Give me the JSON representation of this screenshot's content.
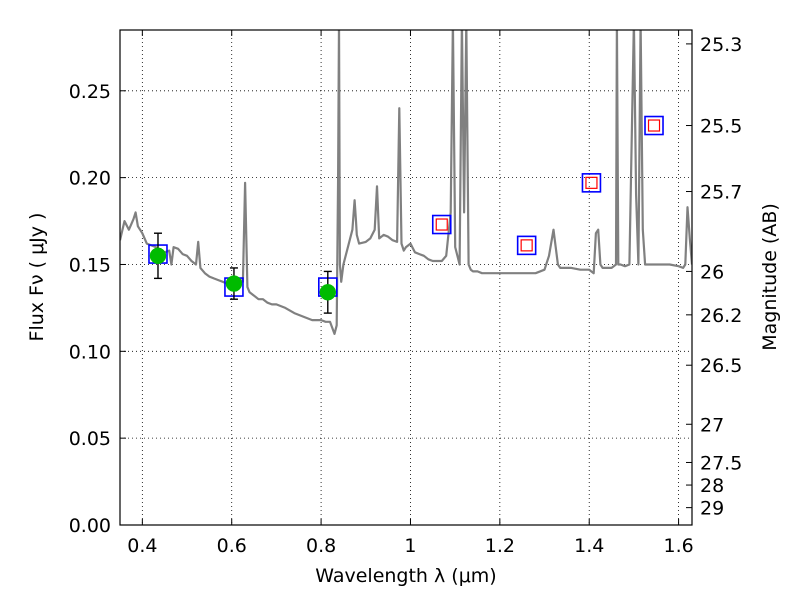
{
  "chart_data": {
    "type": "scatter",
    "xlabel": "Wavelength  λ (μm)",
    "ylabel": "Flux  Fν  ( μJy )",
    "ylabel_right": "Magnitude (AB)",
    "xlim": [
      0.35,
      1.63
    ],
    "ylim": [
      0.0,
      0.285
    ],
    "grid": true,
    "x_ticks": [
      0.4,
      0.6,
      0.8,
      1.0,
      1.2,
      1.4,
      1.6
    ],
    "x_tick_labels": [
      "0.4",
      "0.6",
      "0.8",
      "1",
      "1.2",
      "1.4",
      "1.6"
    ],
    "y_ticks": [
      0.0,
      0.05,
      0.1,
      0.15,
      0.2,
      0.25
    ],
    "y_tick_labels": [
      "0.00",
      "0.05",
      "0.10",
      "0.15",
      "0.20",
      "0.25"
    ],
    "right_ticks": [
      {
        "label": "25.3",
        "flux": 0.277
      },
      {
        "label": "25.5",
        "flux": 0.23
      },
      {
        "label": "25.7",
        "flux": 0.192
      },
      {
        "label": "26",
        "flux": 0.146
      },
      {
        "label": "26.2",
        "flux": 0.121
      },
      {
        "label": "26.5",
        "flux": 0.092
      },
      {
        "label": "27",
        "flux": 0.058
      },
      {
        "label": "27.5",
        "flux": 0.036
      },
      {
        "label": "28",
        "flux": 0.023
      },
      {
        "label": "29",
        "flux": 0.01
      }
    ],
    "series": [
      {
        "style": "line",
        "color": "#808080",
        "x": [
          0.35,
          0.36,
          0.37,
          0.38,
          0.385,
          0.39,
          0.4,
          0.41,
          0.42,
          0.43,
          0.44,
          0.45,
          0.46,
          0.465,
          0.47,
          0.48,
          0.49,
          0.5,
          0.51,
          0.52,
          0.525,
          0.53,
          0.54,
          0.55,
          0.56,
          0.57,
          0.58,
          0.59,
          0.6,
          0.61,
          0.62,
          0.625,
          0.63,
          0.635,
          0.64,
          0.65,
          0.66,
          0.67,
          0.68,
          0.69,
          0.7,
          0.72,
          0.74,
          0.76,
          0.78,
          0.8,
          0.81,
          0.82,
          0.83,
          0.835,
          0.838,
          0.84,
          0.842,
          0.845,
          0.85,
          0.86,
          0.87,
          0.875,
          0.878,
          0.88,
          0.885,
          0.9,
          0.91,
          0.92,
          0.925,
          0.93,
          0.94,
          0.95,
          0.96,
          0.97,
          0.975,
          0.98,
          0.985,
          0.99,
          1.0,
          1.01,
          1.02,
          1.03,
          1.04,
          1.05,
          1.06,
          1.07,
          1.08,
          1.09,
          1.095,
          1.1,
          1.11,
          1.115,
          1.12,
          1.125,
          1.13,
          1.135,
          1.14,
          1.15,
          1.16,
          1.18,
          1.2,
          1.22,
          1.24,
          1.26,
          1.28,
          1.3,
          1.31,
          1.32,
          1.325,
          1.33,
          1.335,
          1.34,
          1.36,
          1.38,
          1.4,
          1.41,
          1.415,
          1.42,
          1.425,
          1.43,
          1.44,
          1.45,
          1.46,
          1.462,
          1.465,
          1.47,
          1.48,
          1.49,
          1.5,
          1.505,
          1.51,
          1.515,
          1.52,
          1.525,
          1.53,
          1.54,
          1.56,
          1.58,
          1.6,
          1.61,
          1.615,
          1.62,
          1.625,
          1.63
        ],
        "y": [
          0.164,
          0.175,
          0.17,
          0.176,
          0.18,
          0.172,
          0.168,
          0.162,
          0.161,
          0.16,
          0.158,
          0.157,
          0.158,
          0.15,
          0.16,
          0.159,
          0.156,
          0.155,
          0.152,
          0.15,
          0.163,
          0.148,
          0.145,
          0.143,
          0.142,
          0.141,
          0.14,
          0.139,
          0.139,
          0.14,
          0.141,
          0.14,
          0.197,
          0.137,
          0.134,
          0.132,
          0.13,
          0.13,
          0.128,
          0.127,
          0.127,
          0.125,
          0.122,
          0.12,
          0.118,
          0.118,
          0.117,
          0.117,
          0.11,
          0.115,
          0.2,
          0.29,
          0.15,
          0.14,
          0.15,
          0.16,
          0.17,
          0.187,
          0.175,
          0.167,
          0.162,
          0.163,
          0.165,
          0.17,
          0.195,
          0.165,
          0.167,
          0.166,
          0.164,
          0.163,
          0.24,
          0.162,
          0.158,
          0.16,
          0.162,
          0.157,
          0.156,
          0.155,
          0.153,
          0.152,
          0.152,
          0.152,
          0.155,
          0.18,
          0.29,
          0.16,
          0.15,
          0.29,
          0.18,
          0.29,
          0.15,
          0.147,
          0.146,
          0.146,
          0.145,
          0.145,
          0.145,
          0.145,
          0.145,
          0.145,
          0.145,
          0.147,
          0.155,
          0.17,
          0.16,
          0.15,
          0.148,
          0.148,
          0.148,
          0.147,
          0.147,
          0.145,
          0.168,
          0.17,
          0.15,
          0.148,
          0.148,
          0.148,
          0.15,
          0.29,
          0.15,
          0.15,
          0.149,
          0.15,
          0.29,
          0.19,
          0.15,
          0.29,
          0.17,
          0.15,
          0.15,
          0.15,
          0.15,
          0.15,
          0.149,
          0.148,
          0.15,
          0.183,
          0.165,
          0.15
        ]
      },
      {
        "style": "open-square",
        "color": "#0000ff",
        "x": [
          0.435,
          0.605,
          0.815,
          1.07,
          1.26,
          1.405,
          1.545
        ],
        "y": [
          0.156,
          0.137,
          0.137,
          0.173,
          0.161,
          0.197,
          0.23
        ]
      },
      {
        "style": "small-open-square",
        "color": "#ff0000",
        "x": [
          1.07,
          1.26,
          1.405,
          1.545
        ],
        "y": [
          0.173,
          0.161,
          0.197,
          0.23
        ]
      },
      {
        "style": "point-errorbar",
        "color": "#00bb00",
        "x": [
          0.435,
          0.605,
          0.815
        ],
        "y": [
          0.155,
          0.139,
          0.134
        ],
        "err": [
          0.013,
          0.009,
          0.012
        ]
      }
    ]
  }
}
